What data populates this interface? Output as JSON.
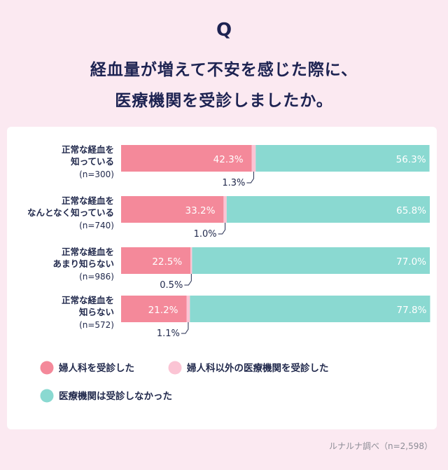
{
  "header": {
    "q": "Q",
    "title_line1": "経血量が増えて不安を感じた際に、",
    "title_line2": "医療機関を受診しましたか。"
  },
  "colors": {
    "gynecology": "#f4899a",
    "other_medical": "#fbc4d4",
    "none": "#8ad9d1"
  },
  "chart_data": {
    "type": "bar",
    "stacked": true,
    "orientation": "horizontal",
    "title": "経血量が増えて不安を感じた際に、医療機関を受診しましたか。",
    "xlim": [
      0,
      100
    ],
    "categories": [
      {
        "lines": [
          "正常な経血を",
          "知っている"
        ],
        "n": "(n=300)"
      },
      {
        "lines": [
          "正常な経血を",
          "なんとなく知っている"
        ],
        "n": "(n=740)"
      },
      {
        "lines": [
          "正常な経血を",
          "あまり知らない"
        ],
        "n": "(n=986)"
      },
      {
        "lines": [
          "正常な経血を",
          "知らない"
        ],
        "n": "(n=572)"
      }
    ],
    "series": [
      {
        "name": "婦人科を受診した",
        "values": [
          42.3,
          33.2,
          22.5,
          21.2
        ],
        "labels": [
          "42.3%",
          "33.2%",
          "22.5%",
          "21.2%"
        ]
      },
      {
        "name": "婦人科以外の医療機関を受診した",
        "values": [
          1.3,
          1.0,
          0.5,
          1.1
        ],
        "labels": [
          "1.3%",
          "1.0%",
          "0.5%",
          "1.1%"
        ]
      },
      {
        "name": "医療機関は受診しなかった",
        "values": [
          56.3,
          65.8,
          77.0,
          77.8
        ],
        "labels": [
          "56.3%",
          "65.8%",
          "77.0%",
          "77.8%"
        ]
      }
    ],
    "legend_position": "bottom-left"
  },
  "source": "ルナルナ調べ（n=2,598）"
}
